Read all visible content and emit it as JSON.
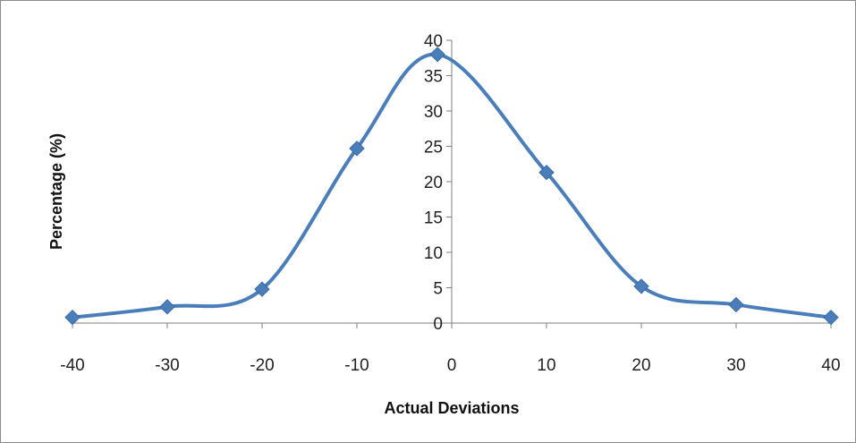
{
  "chart_data": {
    "type": "line",
    "smooth": true,
    "title": "",
    "xlabel": "Actual Deviations",
    "ylabel": "Percentage (%)",
    "xlim": [
      -40,
      40
    ],
    "ylim": [
      0,
      40
    ],
    "x_ticks": [
      -40,
      -30,
      -20,
      -10,
      0,
      10,
      20,
      30,
      40
    ],
    "x_tick_labels": [
      "-40",
      "-30",
      "-20",
      "-10",
      "0",
      "10",
      "20",
      "30",
      "40"
    ],
    "y_ticks": [
      0,
      5,
      10,
      15,
      20,
      25,
      30,
      35,
      40
    ],
    "y_tick_labels": [
      "0",
      "5",
      "10",
      "15",
      "20",
      "25",
      "30",
      "35",
      "40"
    ],
    "grid": false,
    "legend": "none",
    "series": [
      {
        "color": "#4a7ebb",
        "marker": "diamond",
        "x": [
          -40,
          -30,
          -20,
          -10,
          -1.5,
          10,
          20,
          30,
          40
        ],
        "y": [
          0.8,
          2.3,
          4.8,
          24.7,
          38.0,
          21.3,
          5.2,
          2.6,
          0.8
        ]
      }
    ]
  }
}
